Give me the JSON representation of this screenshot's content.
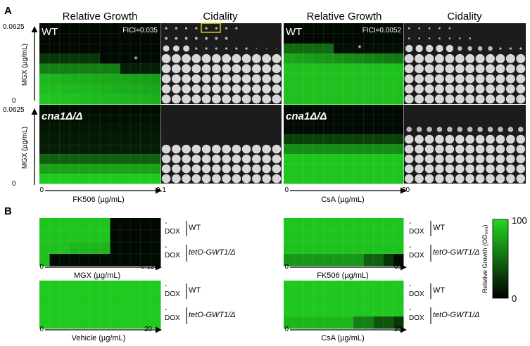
{
  "panel_a": {
    "label": "A",
    "col_headers": [
      "Relative Growth",
      "Cidality",
      "Relative Growth",
      "Cidality"
    ],
    "y_axis": {
      "label": "MGX (µg/mL)",
      "top_tick": "0.0625",
      "bottom_tick": "0"
    },
    "left_strain_labels": {
      "top": "WT",
      "bottom": "cna1Δ/Δ"
    },
    "fici": [
      "FICI=0.035",
      "FICI=0.0052"
    ],
    "star": "*",
    "x_axes": [
      {
        "start": "0",
        "end": "0.1",
        "label": "FK506 (µg/mL)"
      },
      {
        "start": "0",
        "end": "20",
        "label": "CsA (µg/mL)"
      }
    ]
  },
  "panel_b": {
    "label": "B",
    "row_labels": {
      "minus": "-",
      "dox": "DOX",
      "wt": "WT",
      "mutant": "tetO-GWT1/Δ"
    },
    "x_axes": [
      {
        "start": "0",
        "end": "0.125",
        "label": "MGX (µg/mL)"
      },
      {
        "start": "0",
        "end": "0.1",
        "label": "FK506 (µg/mL)"
      },
      {
        "start": "0",
        "end": "20",
        "label": "Vehicle (µg/mL)"
      },
      {
        "start": "0",
        "end": "20",
        "label": "CsA (µg/mL)"
      }
    ],
    "colorbar": {
      "max": "100",
      "min": "0",
      "label": "Relative Growth (OD₆₀₀)"
    }
  },
  "colors": {
    "high": "#22d622",
    "low": "#000000",
    "plate_bg": "#1c1c1c"
  }
}
